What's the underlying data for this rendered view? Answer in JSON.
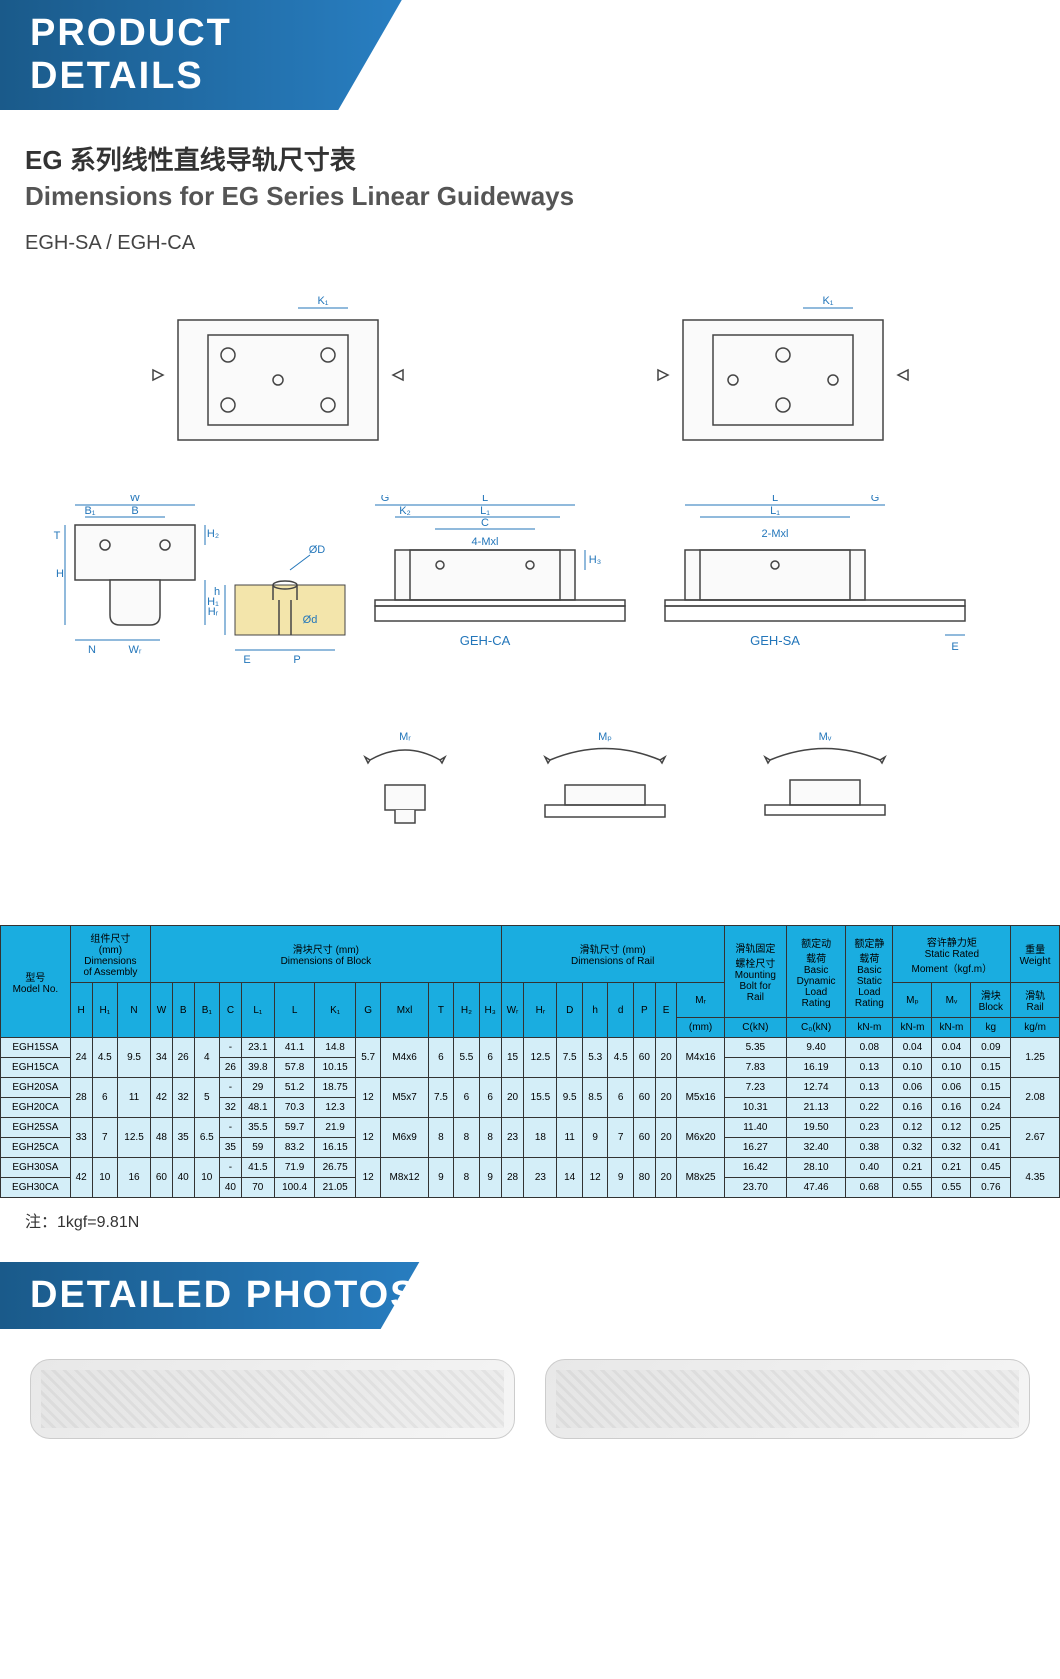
{
  "banners": {
    "details": "PRODUCT DETAILS",
    "photos": "DETAILED PHOTOS"
  },
  "titles": {
    "cn": "EG 系列线性直线导轨尺寸表",
    "en": "Dimensions for EG Series Linear Guideways",
    "sub": "EGH-SA / EGH-CA"
  },
  "diagram_labels": {
    "K1": "K₁",
    "W": "W",
    "B1": "B₁",
    "B": "B",
    "H": "H",
    "H1": "H₁",
    "H2": "H₂",
    "N": "N",
    "Wr": "Wᵣ",
    "T": "T",
    "G": "G",
    "L": "L",
    "L1": "L₁",
    "C": "C",
    "K2": "K₂",
    "4Mxl": "4-Mxl",
    "2Mxl": "2-Mxl",
    "OD": "ØD",
    "Od": "Ød",
    "E": "E",
    "P": "P",
    "h": "h",
    "d": "d",
    "GEH_CA": "GEH-CA",
    "GEH_SA": "GEH-SA",
    "Mr": "Mᵣ",
    "Mp": "Mₚ",
    "Mv": "Mᵥ"
  },
  "note": "注：1kgf=9.81N",
  "table": {
    "headers": {
      "model": "型号\nModel No.",
      "assembly": "组件尺寸\n(mm)\nDimensions\nof Assembly",
      "block": "滑块尺寸 (mm)\nDimensions of Block",
      "rail": "滑轨尺寸 (mm)\nDimensions of Rail",
      "bolt": "滑轨固定\n螺栓尺寸\nMounting\nBolt for\nRail",
      "dyn": "额定动\n载荷\nBasic\nDynamic\nLoad\nRating",
      "stat": "额定静\n载荷\nBasic\nStatic\nLoad\nRating",
      "moment": "容许静力矩\nStatic Rated\nMoment（kgf.m）",
      "weight": "重量\nWeight",
      "sub": {
        "H": "H",
        "H1": "H₁",
        "N": "N",
        "W": "W",
        "B": "B",
        "B1": "B₁",
        "C": "C",
        "L1": "L₁",
        "L": "L",
        "K1": "K₁",
        "G": "G",
        "Mxl": "Mxl",
        "T": "T",
        "H2": "H₂",
        "H3": "H₃",
        "Wr": "Wᵣ",
        "Hr": "Hᵣ",
        "D": "D",
        "h": "h",
        "d": "d",
        "P": "P",
        "E": "E",
        "mm": "(mm)",
        "Ckn": "C(kN)",
        "C0kn": "C₀(kN)",
        "Mr": "Mᵣ",
        "Mp": "Mₚ",
        "Mv": "Mᵥ",
        "blk": "滑块\nBlock",
        "rl": "滑轨\nRail",
        "knm": "kN-m",
        "kg": "kg",
        "kgm": "kg/m"
      }
    },
    "rows": [
      {
        "model": "EGH15SA",
        "H": "24",
        "H1": "4.5",
        "N": "9.5",
        "W": "34",
        "B": "26",
        "B1": "4",
        "C": "5.35",
        "L1": "23.1",
        "L": "41.1",
        "K1": "14.8",
        "G": "5.7",
        "Mxl": "M4x6",
        "T": "6",
        "H2": "5.5",
        "H3": "6",
        "Wr": "15",
        "Hr": "12.5",
        "D": "7.5",
        "h": "5.3",
        "d": "4.5",
        "P": "60",
        "E": "20",
        "bolt": "M4x16",
        "C0": "9.40",
        "Mr": "0.08",
        "Mp": "0.04",
        "Mv": "0.04",
        "blk": "0.09",
        "rl": "1.25"
      },
      {
        "model": "EGH15CA",
        "H": "",
        "H1": "",
        "N": "",
        "W": "",
        "B": "",
        "B1": "",
        "C": "7.83",
        "L1": "39.8",
        "L": "57.8",
        "K1": "10.15",
        "G": "",
        "Mxl": "",
        "T": "",
        "H2": "",
        "H3": "",
        "Wr": "",
        "Hr": "",
        "D": "",
        "h": "",
        "d": "",
        "P": "",
        "E": "",
        "bolt": "",
        "C0": "16.19",
        "Mr": "0.13",
        "Mp": "0.10",
        "Mv": "0.10",
        "blk": "0.15",
        "rl": ""
      },
      {
        "model": "EGH20SA",
        "H": "28",
        "H1": "6",
        "N": "11",
        "W": "42",
        "B": "32",
        "B1": "5",
        "C": "7.23",
        "L1": "29",
        "L": "51.2",
        "K1": "18.75",
        "G": "12",
        "Mxl": "M5x7",
        "T": "7.5",
        "H2": "6",
        "H3": "6",
        "Wr": "20",
        "Hr": "15.5",
        "D": "9.5",
        "h": "8.5",
        "d": "6",
        "P": "60",
        "E": "20",
        "bolt": "M5x16",
        "C0": "12.74",
        "Mr": "0.13",
        "Mp": "0.06",
        "Mv": "0.06",
        "blk": "0.15",
        "rl": "2.08"
      },
      {
        "model": "EGH20CA",
        "H": "",
        "H1": "",
        "N": "",
        "W": "",
        "B": "",
        "B1": "",
        "C": "10.31",
        "L1": "48.1",
        "L": "70.3",
        "K1": "12.3",
        "G": "",
        "Mxl": "",
        "T": "",
        "H2": "",
        "H3": "",
        "Wr": "",
        "Hr": "",
        "D": "",
        "h": "",
        "d": "",
        "P": "",
        "E": "",
        "bolt": "",
        "C0": "21.13",
        "Mr": "0.22",
        "Mp": "0.16",
        "Mv": "0.16",
        "blk": "0.24",
        "rl": ""
      },
      {
        "model": "EGH25SA",
        "H": "33",
        "H1": "7",
        "N": "12.5",
        "W": "48",
        "B": "35",
        "B1": "6.5",
        "C": "11.40",
        "L1": "35.5",
        "L": "59.7",
        "K1": "21.9",
        "G": "12",
        "Mxl": "M6x9",
        "T": "8",
        "H2": "8",
        "H3": "8",
        "Wr": "23",
        "Hr": "18",
        "D": "11",
        "h": "9",
        "d": "7",
        "P": "60",
        "E": "20",
        "bolt": "M6x20",
        "C0": "19.50",
        "Mr": "0.23",
        "Mp": "0.12",
        "Mv": "0.12",
        "blk": "0.25",
        "rl": "2.67"
      },
      {
        "model": "EGH25CA",
        "H": "",
        "H1": "",
        "N": "",
        "W": "",
        "B": "",
        "B1": "",
        "C": "16.27",
        "L1": "59",
        "L": "83.2",
        "K1": "16.15",
        "G": "",
        "Mxl": "",
        "T": "",
        "H2": "",
        "H3": "",
        "Wr": "",
        "Hr": "",
        "D": "",
        "h": "",
        "d": "",
        "P": "",
        "E": "",
        "bolt": "",
        "C0": "32.40",
        "Mr": "0.38",
        "Mp": "0.32",
        "Mv": "0.32",
        "blk": "0.41",
        "rl": ""
      },
      {
        "model": "EGH30SA",
        "H": "42",
        "H1": "10",
        "N": "16",
        "W": "60",
        "B": "40",
        "B1": "10",
        "C": "16.42",
        "L1": "41.5",
        "L": "71.9",
        "K1": "26.75",
        "G": "12",
        "Mxl": "M8x12",
        "T": "9",
        "H2": "8",
        "H3": "9",
        "Wr": "28",
        "Hr": "23",
        "D": "14",
        "h": "12",
        "d": "9",
        "P": "80",
        "E": "20",
        "bolt": "M8x25",
        "C0": "28.10",
        "Mr": "0.40",
        "Mp": "0.21",
        "Mv": "0.21",
        "blk": "0.45",
        "rl": "4.35"
      },
      {
        "model": "EGH30CA",
        "H": "",
        "H1": "",
        "N": "",
        "W": "",
        "B": "",
        "B1": "",
        "C": "23.70",
        "L1": "70",
        "L": "100.4",
        "K1": "21.05",
        "G": "",
        "Mxl": "",
        "T": "",
        "H2": "",
        "H3": "",
        "Wr": "",
        "Hr": "",
        "D": "",
        "h": "",
        "d": "",
        "P": "",
        "E": "",
        "bolt": "",
        "C0": "47.46",
        "Mr": "0.68",
        "Mp": "0.55",
        "Mv": "0.55",
        "blk": "0.76",
        "rl": ""
      }
    ]
  },
  "colors": {
    "banner_start": "#1a5a8a",
    "banner_end": "#2980c4",
    "header_bg": "#1aade0",
    "cell_bg": "#d4eef8",
    "dim_blue": "#2376ba"
  }
}
